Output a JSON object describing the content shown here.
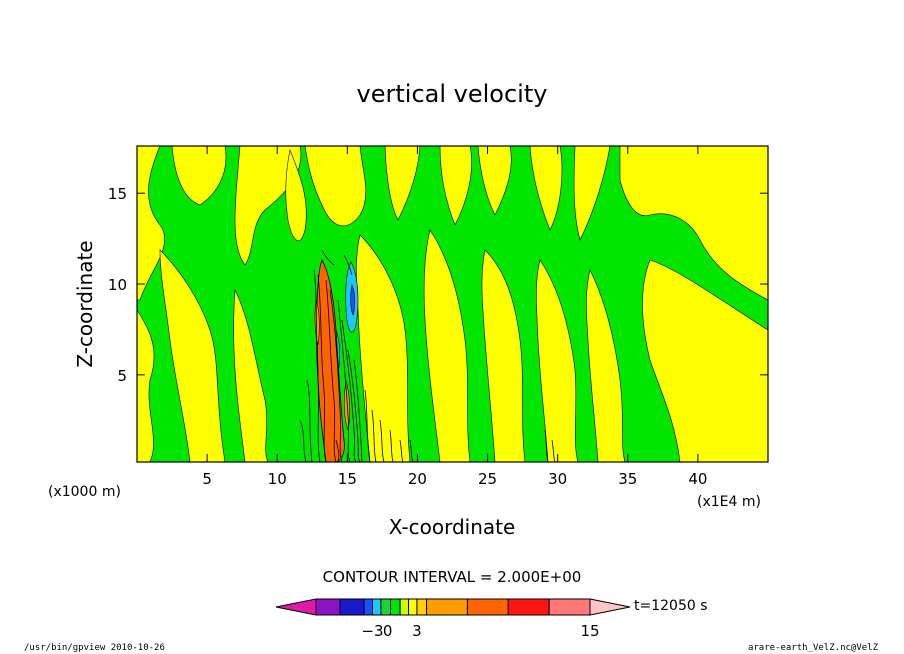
{
  "chart_data": {
    "type": "contour",
    "title": "vertical velocity",
    "xlabel": "X-coordinate",
    "ylabel": "Z-coordinate",
    "x_units_left": "(x1000 m)",
    "x_units_right": "(x1E4 m)",
    "xlim": [
      0,
      45
    ],
    "ylim": [
      0.2,
      17.6
    ],
    "x_ticks": [
      5,
      10,
      15,
      20,
      25,
      30,
      35,
      40
    ],
    "y_ticks": [
      5,
      10,
      15
    ],
    "x_tick_labels": [
      "5",
      "10",
      "15",
      "20",
      "25",
      "30",
      "35",
      "40"
    ],
    "y_tick_labels": [
      "5",
      "10",
      "15"
    ],
    "contour_interval_text": "CONTOUR INTERVAL = 2.000E+00",
    "time_text": "t=12050 s",
    "colorbar_labels": [
      {
        "value": -3,
        "text": "−3"
      },
      {
        "value": 0,
        "text": "0"
      },
      {
        "value": 3,
        "text": "3"
      },
      {
        "value": 15,
        "text": "15"
      }
    ],
    "colorbar_colors": [
      "#e01aa8",
      "#8a14c4",
      "#1a1acc",
      "#1a50ff",
      "#18c8ff",
      "#1ad23c",
      "#00e600",
      "#ccff00",
      "#ffff00",
      "#ffd000",
      "#ff9c00",
      "#ff6400",
      "#ff1414",
      "#ff7878",
      "#ffc4c4"
    ],
    "dominant_colors": {
      "weak_positive": "#ffff00",
      "near_zero": "#00e600",
      "strong_updraft": "#ff6400",
      "downdraft": "#18c8ff",
      "contour_line": "#000000"
    }
  },
  "footer": {
    "left": "/usr/bin/gpview   2010-10-26",
    "right": "arare-earth_VelZ.nc@VelZ"
  }
}
